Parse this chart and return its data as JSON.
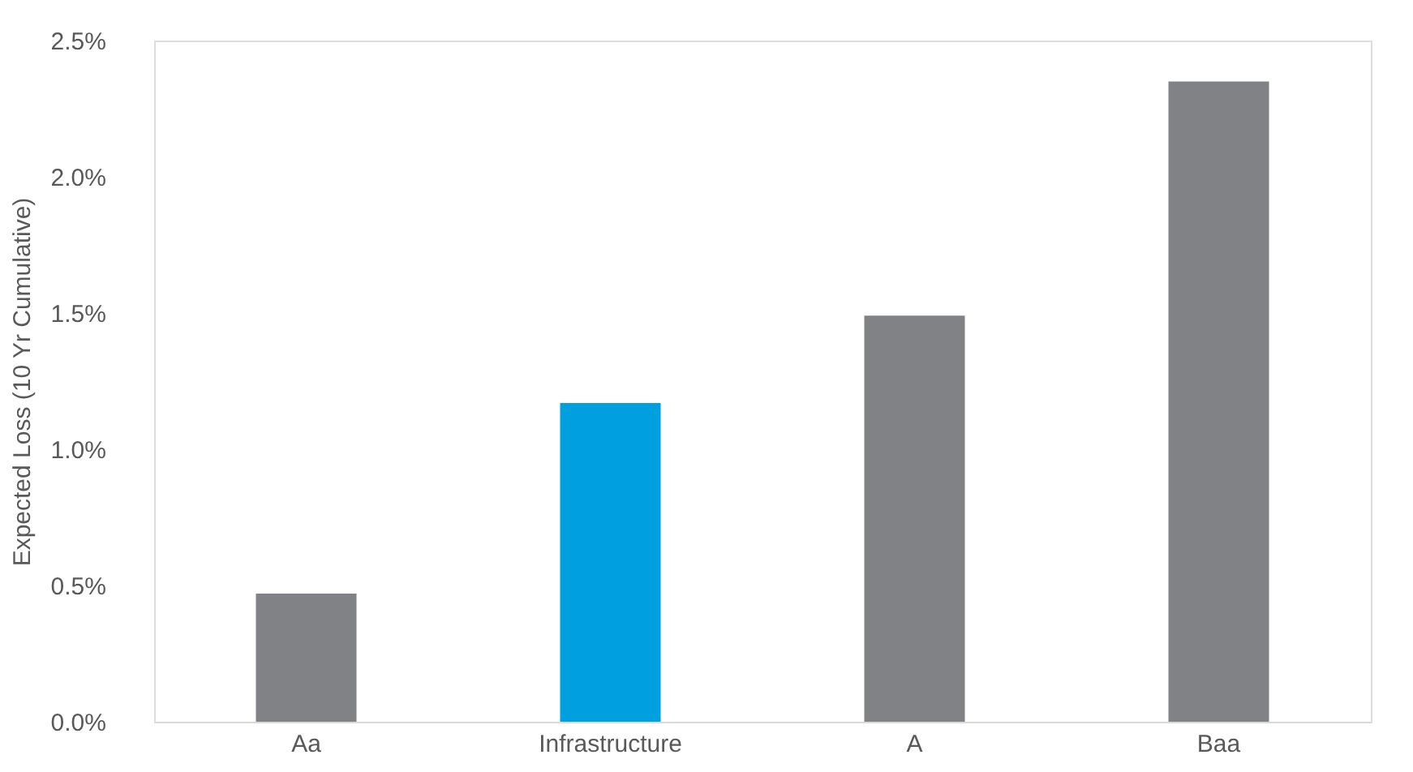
{
  "chart_data": {
    "type": "bar",
    "ylabel": "Expected Loss (10 Yr Cumulative)",
    "categories": [
      "Aa",
      "Infrastructure",
      "A",
      "Baa"
    ],
    "values": [
      0.47,
      1.17,
      1.49,
      2.35
    ],
    "colors": [
      "#808285",
      "#00a0e0",
      "#808285",
      "#808285"
    ],
    "ylim": [
      0,
      2.5
    ],
    "yticks": [
      {
        "value": 0,
        "label": "0.0%"
      },
      {
        "value": 0.5,
        "label": "0.5%"
      },
      {
        "value": 1,
        "label": "1.0%"
      },
      {
        "value": 1.5,
        "label": "1.5%"
      },
      {
        "value": 2,
        "label": "2.0%"
      },
      {
        "value": 2.5,
        "label": "2.5%"
      }
    ],
    "grid": false
  }
}
